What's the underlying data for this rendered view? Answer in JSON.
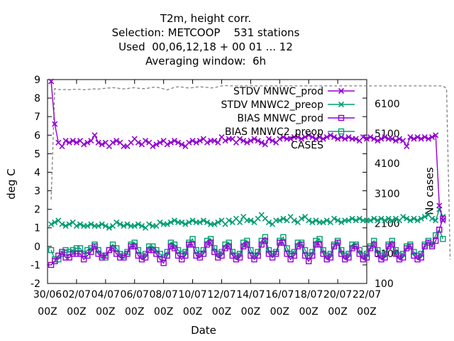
{
  "title": {
    "line1": "T2m, height corr.",
    "line2": "Selection: METCOOP    531 stations",
    "line3": "Used  00,06,12,18 + 00 01 ... 12",
    "line4": "Averaging window:  6h"
  },
  "chart_data": {
    "type": "line",
    "xlabel": "Date",
    "ylabel": "deg C",
    "y2label": "No cases",
    "ylim": [
      -2,
      9
    ],
    "y2lim": [
      100,
      6900
    ],
    "yticks": [
      "9",
      "8",
      "7",
      "6",
      "5",
      "4",
      "3",
      "2",
      "1",
      "0",
      "-1",
      "-2"
    ],
    "y2ticks": [
      "6100",
      "5100",
      "4100",
      "3100",
      "2100",
      "1100",
      "100"
    ],
    "xticks": [
      {
        "date": "30/06",
        "time": "00Z"
      },
      {
        "date": "02/07",
        "time": "00Z"
      },
      {
        "date": "04/07",
        "time": "00Z"
      },
      {
        "date": "06/07",
        "time": "00Z"
      },
      {
        "date": "08/07",
        "time": "00Z"
      },
      {
        "date": "10/07",
        "time": "00Z"
      },
      {
        "date": "12/07",
        "time": "00Z"
      },
      {
        "date": "14/07",
        "time": "00Z"
      },
      {
        "date": "16/07",
        "time": "00Z"
      },
      {
        "date": "18/07",
        "time": "00Z"
      },
      {
        "date": "20/07",
        "time": "00Z"
      },
      {
        "date": "22/07",
        "time": "00Z"
      }
    ],
    "x_start": "2023-07-01 06Z",
    "x_step_hours": 6,
    "x_note": "",
    "legend_position": "top-right",
    "series": [
      {
        "name": "STDV MNWC_prod",
        "color": "#9400d3",
        "marker": "x",
        "axis": "y",
        "values": [
          8.9,
          6.6,
          5.6,
          5.4,
          5.7,
          5.6,
          5.7,
          5.6,
          5.7,
          5.5,
          5.6,
          5.7,
          6.0,
          5.6,
          5.5,
          5.6,
          5.4,
          5.6,
          5.7,
          5.6,
          5.4,
          5.4,
          5.6,
          5.8,
          5.6,
          5.5,
          5.7,
          5.6,
          5.4,
          5.5,
          5.6,
          5.7,
          5.5,
          5.6,
          5.7,
          5.6,
          5.5,
          5.4,
          5.6,
          5.7,
          5.6,
          5.7,
          5.8,
          5.6,
          5.7,
          5.7,
          5.6,
          5.9,
          5.7,
          5.8,
          5.8,
          5.6,
          5.8,
          5.7,
          5.6,
          5.7,
          5.8,
          5.7,
          5.6,
          5.5,
          5.8,
          5.7,
          5.6,
          5.8,
          5.9,
          5.8,
          5.8,
          5.9,
          5.9,
          5.8,
          5.9,
          6.0,
          5.9,
          5.8,
          5.9,
          5.8,
          5.9,
          6.0,
          5.9,
          5.8,
          5.9,
          5.8,
          5.9,
          5.8,
          5.8,
          5.7,
          5.9,
          5.8,
          5.9,
          5.8,
          5.7,
          5.8,
          5.9,
          5.8,
          5.8,
          5.7,
          5.8,
          5.7,
          5.4,
          5.9,
          5.8,
          5.9,
          5.8,
          5.9,
          5.8,
          5.9,
          6.0,
          2.2,
          1.4
        ]
      },
      {
        "name": "STDV MNWC2_preop",
        "color": "#009e73",
        "marker": "x",
        "axis": "y",
        "values": [
          1.2,
          1.3,
          1.4,
          1.2,
          1.1,
          1.2,
          1.3,
          1.1,
          1.2,
          1.1,
          1.1,
          1.2,
          1.1,
          1.1,
          1.2,
          1.1,
          1.0,
          1.1,
          1.3,
          1.2,
          1.1,
          1.2,
          1.1,
          1.1,
          1.2,
          1.1,
          1.0,
          1.2,
          1.1,
          1.1,
          1.3,
          1.2,
          1.2,
          1.3,
          1.4,
          1.3,
          1.3,
          1.2,
          1.3,
          1.4,
          1.3,
          1.3,
          1.4,
          1.3,
          1.2,
          1.2,
          1.3,
          1.4,
          1.2,
          1.4,
          1.3,
          1.5,
          1.3,
          1.6,
          1.4,
          1.4,
          1.3,
          1.5,
          1.7,
          1.5,
          1.3,
          1.2,
          1.4,
          1.4,
          1.5,
          1.4,
          1.6,
          1.4,
          1.3,
          1.5,
          1.6,
          1.4,
          1.3,
          1.4,
          1.3,
          1.3,
          1.4,
          1.3,
          1.5,
          1.4,
          1.3,
          1.4,
          1.4,
          1.5,
          1.4,
          1.5,
          1.4,
          1.4,
          1.4,
          1.5,
          1.4,
          1.5,
          1.4,
          1.5,
          1.4,
          1.5,
          1.4,
          1.6,
          1.5,
          1.4,
          1.5,
          1.4,
          1.5,
          1.6,
          1.7,
          1.5,
          1.4,
          2.0,
          1.6
        ]
      },
      {
        "name": "BIAS MNWC_prod",
        "color": "#9400d3",
        "marker": "square",
        "axis": "y",
        "values": [
          -1.0,
          -0.8,
          -0.5,
          -0.3,
          -0.6,
          -0.6,
          -0.4,
          -0.4,
          -0.4,
          -0.7,
          -0.5,
          -0.3,
          0.0,
          -0.4,
          -0.6,
          -0.5,
          -0.2,
          -0.1,
          -0.4,
          -0.6,
          -0.6,
          -0.4,
          0.0,
          0.0,
          -0.5,
          -0.7,
          -0.6,
          -0.2,
          -0.2,
          -0.4,
          -0.7,
          -0.9,
          -0.5,
          0.0,
          -0.1,
          -0.5,
          -0.7,
          -0.5,
          0.1,
          0.1,
          -0.5,
          -0.6,
          -0.4,
          0.1,
          0.2,
          -0.3,
          -0.6,
          -0.5,
          -0.1,
          0.0,
          -0.5,
          -0.7,
          -0.6,
          0.0,
          0.1,
          -0.5,
          -0.7,
          -0.5,
          0.1,
          0.3,
          -0.4,
          -0.6,
          -0.4,
          0.2,
          0.2,
          -0.4,
          -0.7,
          -0.5,
          0.0,
          0.1,
          -0.5,
          -0.8,
          -0.5,
          0.1,
          0.1,
          -0.4,
          -0.7,
          -0.6,
          0.0,
          0.2,
          -0.4,
          -0.7,
          -0.6,
          -0.1,
          0.0,
          -0.4,
          -0.7,
          -0.6,
          -0.1,
          0.1,
          -0.4,
          -0.7,
          -0.6,
          0.0,
          0.1,
          -0.4,
          -0.7,
          -0.6,
          -0.1,
          0.0,
          -0.5,
          -0.7,
          -0.6,
          0.0,
          0.2,
          0.0,
          0.3,
          0.9,
          1.5
        ]
      },
      {
        "name": "BIAS MNWC2_preop",
        "color": "#009e73",
        "marker": "square",
        "axis": "y",
        "values": [
          -0.2,
          -0.7,
          -0.7,
          -0.4,
          -0.2,
          -0.3,
          -0.2,
          -0.1,
          -0.1,
          -0.4,
          -0.2,
          -0.1,
          0.1,
          -0.2,
          -0.5,
          -0.6,
          -0.2,
          0.1,
          -0.1,
          -0.4,
          -0.5,
          -0.3,
          0.1,
          0.2,
          -0.2,
          -0.5,
          -0.4,
          0.0,
          0.0,
          -0.2,
          -0.4,
          -0.6,
          -0.3,
          0.2,
          0.1,
          -0.2,
          -0.4,
          -0.3,
          0.2,
          0.4,
          -0.2,
          -0.4,
          -0.2,
          0.3,
          0.4,
          -0.1,
          -0.4,
          -0.3,
          0.1,
          0.2,
          -0.3,
          -0.5,
          -0.4,
          0.2,
          0.3,
          -0.2,
          -0.5,
          -0.3,
          0.3,
          0.5,
          -0.2,
          -0.4,
          -0.3,
          0.3,
          0.5,
          -0.1,
          -0.4,
          -0.3,
          0.2,
          0.2,
          -0.2,
          -0.5,
          -0.3,
          0.3,
          0.4,
          -0.2,
          -0.5,
          -0.4,
          0.1,
          0.3,
          -0.2,
          -0.5,
          -0.4,
          0.1,
          0.1,
          -0.2,
          -0.5,
          -0.4,
          0.0,
          0.3,
          -0.2,
          -0.5,
          -0.4,
          0.1,
          0.3,
          -0.2,
          -0.5,
          -0.4,
          0.0,
          0.1,
          -0.3,
          -0.5,
          -0.4,
          0.1,
          0.3,
          0.1,
          0.6,
          0.9,
          0.4
        ]
      },
      {
        "name": "CASES",
        "color": "#808080",
        "marker": "none",
        "dashed": true,
        "axis": "y2",
        "values": [
          2900,
          6600,
          6570,
          6560,
          6570,
          6560,
          6570,
          6580,
          6570,
          6560,
          6570,
          6580,
          6590,
          6580,
          6600,
          6610,
          6620,
          6630,
          6620,
          6600,
          6590,
          6600,
          6620,
          6630,
          6610,
          6600,
          6600,
          6620,
          6640,
          6650,
          6620,
          6590,
          6560,
          6600,
          6640,
          6660,
          6650,
          6630,
          6620,
          6630,
          6650,
          6660,
          6650,
          6640,
          6620,
          6630,
          6660,
          6690,
          6700,
          6690,
          6690,
          6690,
          6690,
          6690,
          6690,
          6690,
          6690,
          6690,
          6690,
          6690,
          6690,
          6690,
          6690,
          6690,
          6690,
          6690,
          6690,
          6690,
          6690,
          6690,
          6690,
          6690,
          6690,
          6690,
          6690,
          6690,
          6690,
          6690,
          6690,
          6690,
          6690,
          6690,
          6690,
          6690,
          6690,
          6690,
          6690,
          6690,
          6690,
          6690,
          6690,
          6690,
          6690,
          6690,
          6690,
          6690,
          6690,
          6690,
          6690,
          6690,
          6690,
          6690,
          6690,
          6690,
          6690,
          6690,
          6690,
          6690,
          6690,
          6600,
          900
        ]
      }
    ]
  }
}
